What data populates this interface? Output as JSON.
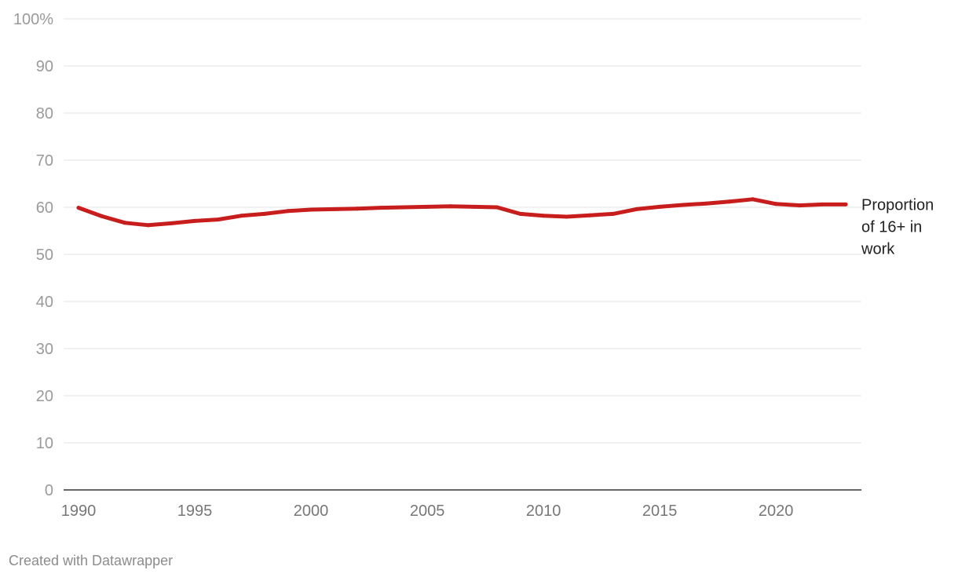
{
  "chart_data": {
    "type": "line",
    "title": "",
    "xlabel": "",
    "ylabel": "",
    "xlim": [
      1990,
      2023
    ],
    "ylim": [
      0,
      100
    ],
    "grid": true,
    "y_ticks": [
      {
        "value": 0,
        "label": "0"
      },
      {
        "value": 10,
        "label": "10"
      },
      {
        "value": 20,
        "label": "20"
      },
      {
        "value": 30,
        "label": "30"
      },
      {
        "value": 40,
        "label": "40"
      },
      {
        "value": 50,
        "label": "50"
      },
      {
        "value": 60,
        "label": "60"
      },
      {
        "value": 70,
        "label": "70"
      },
      {
        "value": 80,
        "label": "80"
      },
      {
        "value": 90,
        "label": "90"
      },
      {
        "value": 100,
        "label": "100%"
      }
    ],
    "x_ticks": [
      {
        "value": 1990,
        "label": "1990"
      },
      {
        "value": 1995,
        "label": "1995"
      },
      {
        "value": 2000,
        "label": "2000"
      },
      {
        "value": 2005,
        "label": "2005"
      },
      {
        "value": 2010,
        "label": "2010"
      },
      {
        "value": 2015,
        "label": "2015"
      },
      {
        "value": 2020,
        "label": "2020"
      }
    ],
    "series": [
      {
        "name_lines": [
          "Proportion",
          "of 16+ in",
          "work"
        ],
        "color": "#c71e1d",
        "x": [
          1990,
          1991,
          1992,
          1993,
          1994,
          1995,
          1996,
          1997,
          1998,
          1999,
          2000,
          2001,
          2002,
          2003,
          2004,
          2005,
          2006,
          2007,
          2008,
          2009,
          2010,
          2011,
          2012,
          2013,
          2014,
          2015,
          2016,
          2017,
          2018,
          2019,
          2020,
          2021,
          2022,
          2023
        ],
        "values": [
          59.9,
          58.1,
          56.7,
          56.2,
          56.6,
          57.1,
          57.4,
          58.2,
          58.6,
          59.2,
          59.5,
          59.6,
          59.7,
          59.9,
          60.0,
          60.1,
          60.2,
          60.1,
          60.0,
          58.6,
          58.2,
          58.0,
          58.3,
          58.6,
          59.6,
          60.1,
          60.5,
          60.8,
          61.2,
          61.7,
          60.7,
          60.4,
          60.6,
          60.6
        ]
      }
    ]
  },
  "footer": {
    "credit": "Created with Datawrapper"
  }
}
